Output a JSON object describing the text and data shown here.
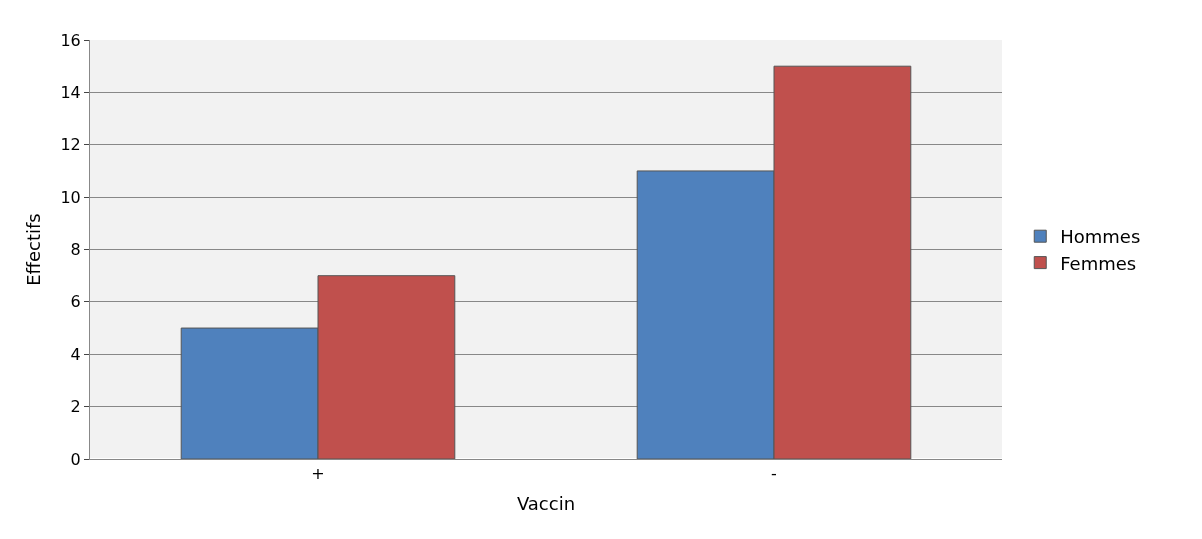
{
  "chart_data": {
    "type": "bar",
    "xlabel": "Vaccin",
    "ylabel": "Effectifs",
    "categories": [
      "+",
      "-"
    ],
    "series": [
      {
        "name": "Hommes",
        "color": "#4f81bd",
        "values": [
          5,
          11
        ]
      },
      {
        "name": "Femmes",
        "color": "#c0504d",
        "values": [
          7,
          15
        ]
      }
    ],
    "ylim": [
      0,
      16
    ],
    "yticks": [
      0,
      2,
      4,
      6,
      8,
      10,
      12,
      14,
      16
    ],
    "grid": "y",
    "legend": "right"
  }
}
